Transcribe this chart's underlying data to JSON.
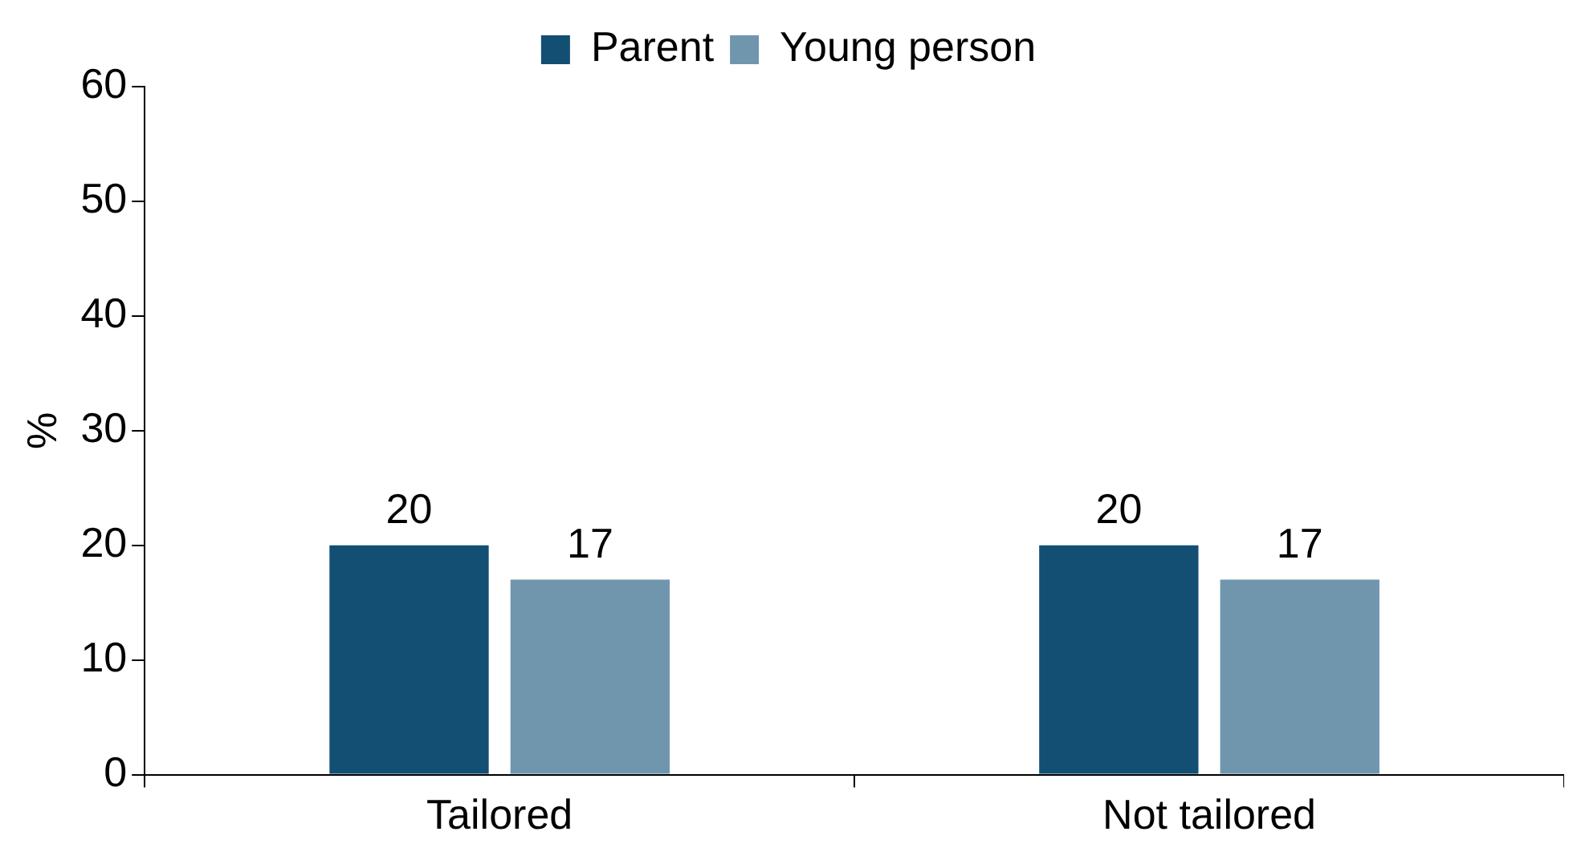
{
  "chart_data": {
    "type": "bar",
    "ylabel": "%",
    "categories": [
      "Tailored",
      "Not tailored"
    ],
    "series": [
      {
        "name": "Parent",
        "color": "#134e73",
        "values": [
          20,
          20
        ]
      },
      {
        "name": "Young person",
        "color": "#7096ae",
        "values": [
          17,
          17
        ]
      }
    ],
    "ylim": [
      0,
      60
    ],
    "yticks": [
      0,
      10,
      20,
      30,
      40,
      50,
      60
    ],
    "grid": false,
    "legend": "top",
    "data_labels": true
  }
}
